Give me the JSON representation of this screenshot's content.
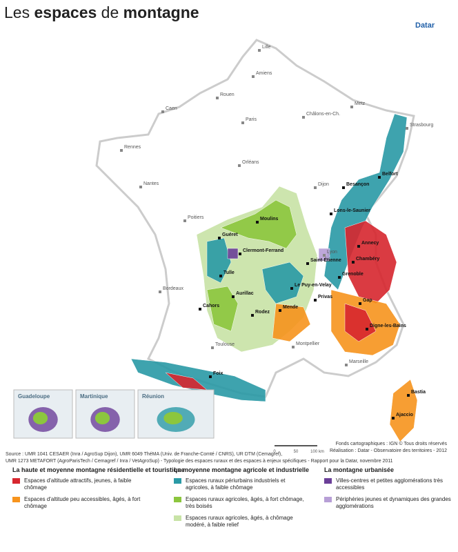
{
  "title": {
    "part1": "Les ",
    "part2": "espaces",
    "part3": " de ",
    "part4": "montagne"
  },
  "brand": "Datar",
  "cities": [
    {
      "label": "Lille",
      "major": false
    },
    {
      "label": "Amiens",
      "major": false
    },
    {
      "label": "Rouen",
      "major": false
    },
    {
      "label": "Caen",
      "major": false
    },
    {
      "label": "Paris",
      "major": false
    },
    {
      "label": "Châlons-en-Ch.",
      "major": false
    },
    {
      "label": "Metz",
      "major": false
    },
    {
      "label": "Strasbourg",
      "major": false
    },
    {
      "label": "Rennes",
      "major": false
    },
    {
      "label": "Orléans",
      "major": false
    },
    {
      "label": "Nantes",
      "major": false
    },
    {
      "label": "Dijon",
      "major": false
    },
    {
      "label": "Besançon",
      "major": true
    },
    {
      "label": "Belfort",
      "major": true
    },
    {
      "label": "Lons-le-Saunier",
      "major": true
    },
    {
      "label": "Poitiers",
      "major": false
    },
    {
      "label": "Moulins",
      "major": true
    },
    {
      "label": "Guéret",
      "major": true
    },
    {
      "label": "Clermont-Ferrand",
      "major": true
    },
    {
      "label": "Lyon",
      "major": false
    },
    {
      "label": "Saint-Étienne",
      "major": true
    },
    {
      "label": "Annecy",
      "major": true
    },
    {
      "label": "Chambéry",
      "major": true
    },
    {
      "label": "Grenoble",
      "major": true
    },
    {
      "label": "Tulle",
      "major": true
    },
    {
      "label": "Le Puy-en-Velay",
      "major": true
    },
    {
      "label": "Aurillac",
      "major": true
    },
    {
      "label": "Bordeaux",
      "major": false
    },
    {
      "label": "Privas",
      "major": true
    },
    {
      "label": "Gap",
      "major": true
    },
    {
      "label": "Cahors",
      "major": true
    },
    {
      "label": "Rodez",
      "major": true
    },
    {
      "label": "Mende",
      "major": true
    },
    {
      "label": "Digne-les-Bains",
      "major": true
    },
    {
      "label": "Montpellier",
      "major": false
    },
    {
      "label": "Toulouse",
      "major": false
    },
    {
      "label": "Marseille",
      "major": false
    },
    {
      "label": "Foix",
      "major": true
    },
    {
      "label": "Bastia",
      "major": true
    },
    {
      "label": "Ajaccio",
      "major": true
    }
  ],
  "insets": [
    "Guadeloupe",
    "Martinique",
    "Réunion"
  ],
  "scale": [
    "0",
    "50",
    "100 km"
  ],
  "credits": [
    "Fonds cartographiques : IGN © Tous droits réservés",
    "Réalisation : Datar - Observatoire des territoires - 2012"
  ],
  "source": [
    "Source : UMR 1041 CESAER (Inra / AgroSup Dijon), UMR 6049 ThéMA (Univ. de Franche-Comté / CNRS), UR DTM (Cemagref),",
    "UMR 1273 METAFORT (AgroParisTech / Cemagref / Inra / VetAgroSup) - Typologie des espaces ruraux et des espaces à enjeux spécifiques - Rapport pour la Datar, novembre 2011"
  ],
  "legend": [
    {
      "title": "La haute et moyenne montagne résidentielle et touristique",
      "items": [
        {
          "label": "Espaces d'altitude attractifs, jeunes, à faible chômage",
          "color": "#d7262e"
        },
        {
          "label": "Espaces d'altitude peu accessibles, âgés, à fort chômage",
          "color": "#f7941d"
        }
      ]
    },
    {
      "title": "La moyenne montagne agricole et industrielle",
      "items": [
        {
          "label": "Espaces ruraux périurbains industriels et agricoles, à faible chômage",
          "color": "#2a9aa6"
        },
        {
          "label": "Espaces ruraux agricoles, âgés, à fort chômage, très boisés",
          "color": "#8cc63e"
        },
        {
          "label": "Espaces ruraux agricoles, âgés, à chômage modéré, à faible relief",
          "color": "#c8e3a6"
        }
      ]
    },
    {
      "title": "La montagne urbanisée",
      "items": [
        {
          "label": "Villes-centres et petites agglomérations très accessibles",
          "color": "#6b3f98"
        },
        {
          "label": "Périphéries jeunes et dynamiques des grandes agglomérations",
          "color": "#b79fd6"
        }
      ]
    }
  ]
}
